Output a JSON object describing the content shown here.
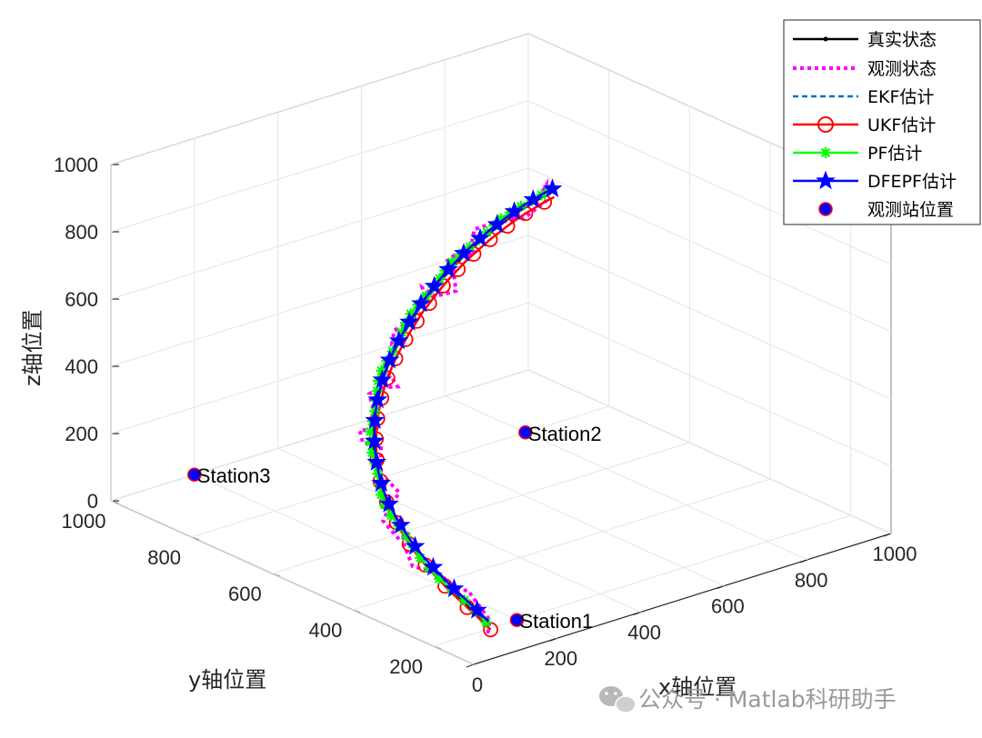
{
  "chart_data": {
    "type": "line3d",
    "title": "",
    "xlabel": "x轴位置",
    "ylabel": "y轴位置",
    "zlabel": "z轴位置",
    "xlim": [
      0,
      1000
    ],
    "ylim": [
      100,
      1000
    ],
    "zlim": [
      0,
      1000
    ],
    "x_ticks": [
      "0",
      "200",
      "400",
      "600",
      "800",
      "1000"
    ],
    "y_ticks": [
      "200",
      "400",
      "600",
      "800",
      "1000"
    ],
    "z_ticks": [
      "0",
      "200",
      "400",
      "600",
      "800",
      "1000"
    ],
    "grid": true,
    "legend_position": "top-right",
    "series": [
      {
        "name": "真实状态",
        "color": "#000000",
        "style": "solid-dot"
      },
      {
        "name": "观测状态",
        "color": "#ff00ff",
        "style": "dotted"
      },
      {
        "name": "EKF估计",
        "color": "#0072bd",
        "style": "dashed"
      },
      {
        "name": "UKF估计",
        "color": "#ff0000",
        "style": "circle"
      },
      {
        "name": "PF估计",
        "color": "#00ff00",
        "style": "asterisk"
      },
      {
        "name": "DFEPF估计",
        "color": "#0000ff",
        "style": "star"
      }
    ],
    "stations_legend": "观测站位置",
    "stations": [
      {
        "name": "Station1",
        "x": 200,
        "y": 200,
        "z": 0
      },
      {
        "name": "Station2",
        "x": 800,
        "y": 800,
        "z": 0
      },
      {
        "name": "Station3",
        "x": 200,
        "y": 1000,
        "z": 0
      }
    ],
    "trajectory": {
      "x": [
        143,
        145,
        146,
        146,
        147,
        148,
        149,
        151,
        154,
        158,
        163,
        168,
        174,
        181,
        189,
        198,
        207,
        217,
        227,
        238,
        249,
        261,
        273,
        285,
        298,
        311,
        324,
        338,
        352,
        365,
        379,
        393,
        407,
        421,
        435,
        448,
        462,
        475,
        488,
        501,
        513,
        525,
        537,
        548,
        560,
        571,
        582,
        593
      ],
      "y": [
        213,
        244,
        274,
        302,
        330,
        356,
        381,
        404,
        426,
        447,
        467,
        486,
        503,
        519,
        534,
        548,
        561,
        573,
        584,
        594,
        603,
        611,
        618,
        624,
        629,
        633,
        636,
        638,
        640,
        640,
        640,
        640,
        638,
        636,
        633,
        629,
        624,
        619,
        612,
        605,
        597,
        588,
        579,
        569,
        558,
        546,
        534,
        521
      ],
      "z": [
        0,
        16,
        32,
        48,
        65,
        82,
        99,
        117,
        135,
        154,
        173,
        192,
        211,
        231,
        251,
        271,
        292,
        313,
        334,
        355,
        376,
        398,
        419,
        441,
        463,
        485,
        507,
        529,
        551,
        573,
        595,
        617,
        638,
        660,
        682,
        703,
        725,
        746,
        767,
        788,
        809,
        829,
        849,
        869,
        889,
        908,
        927,
        945
      ]
    }
  },
  "watermark": "公众号 · Matlab科研助手"
}
